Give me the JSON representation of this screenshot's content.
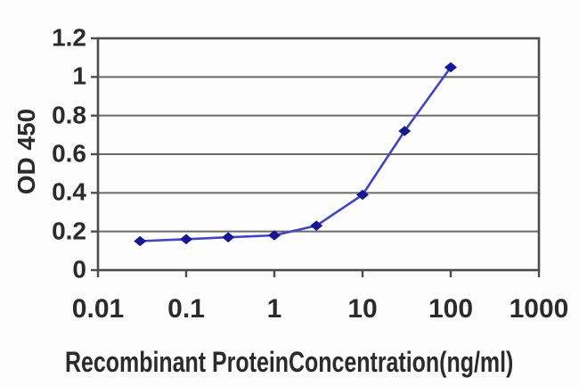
{
  "chart_data": {
    "type": "line",
    "title": "",
    "xlabel": "Recombinant ProteinConcentration(ng/ml)",
    "ylabel": "OD 450",
    "x_scale": "log",
    "x": [
      0.03,
      0.1,
      0.3,
      1,
      3,
      10,
      30,
      100
    ],
    "series": [
      {
        "name": "OD 450",
        "values": [
          0.15,
          0.16,
          0.17,
          0.18,
          0.23,
          0.39,
          0.72,
          1.05
        ]
      }
    ],
    "x_ticks": [
      0.01,
      0.1,
      1,
      10,
      100,
      1000
    ],
    "x_tick_labels": [
      "0.01",
      "0.1",
      "1",
      "10",
      "100",
      "1000"
    ],
    "y_ticks": [
      0,
      0.2,
      0.4,
      0.6,
      0.8,
      1,
      1.2
    ],
    "y_tick_labels": [
      "0",
      "0.2",
      "0.4",
      "0.6",
      "0.8",
      "1",
      "1.2"
    ],
    "xlim": [
      0.01,
      1000
    ],
    "ylim": [
      0,
      1.2
    ],
    "grid": "horizontal",
    "legend": "none",
    "marker": "diamond",
    "colors": {
      "line": "#4345c0",
      "marker": "#17178f",
      "grid": "#696969",
      "axis": "#4d4d4d",
      "text": "#2b2b2b",
      "plot_background": "#fdfdfd",
      "page_background": "#fcfcfc"
    }
  }
}
